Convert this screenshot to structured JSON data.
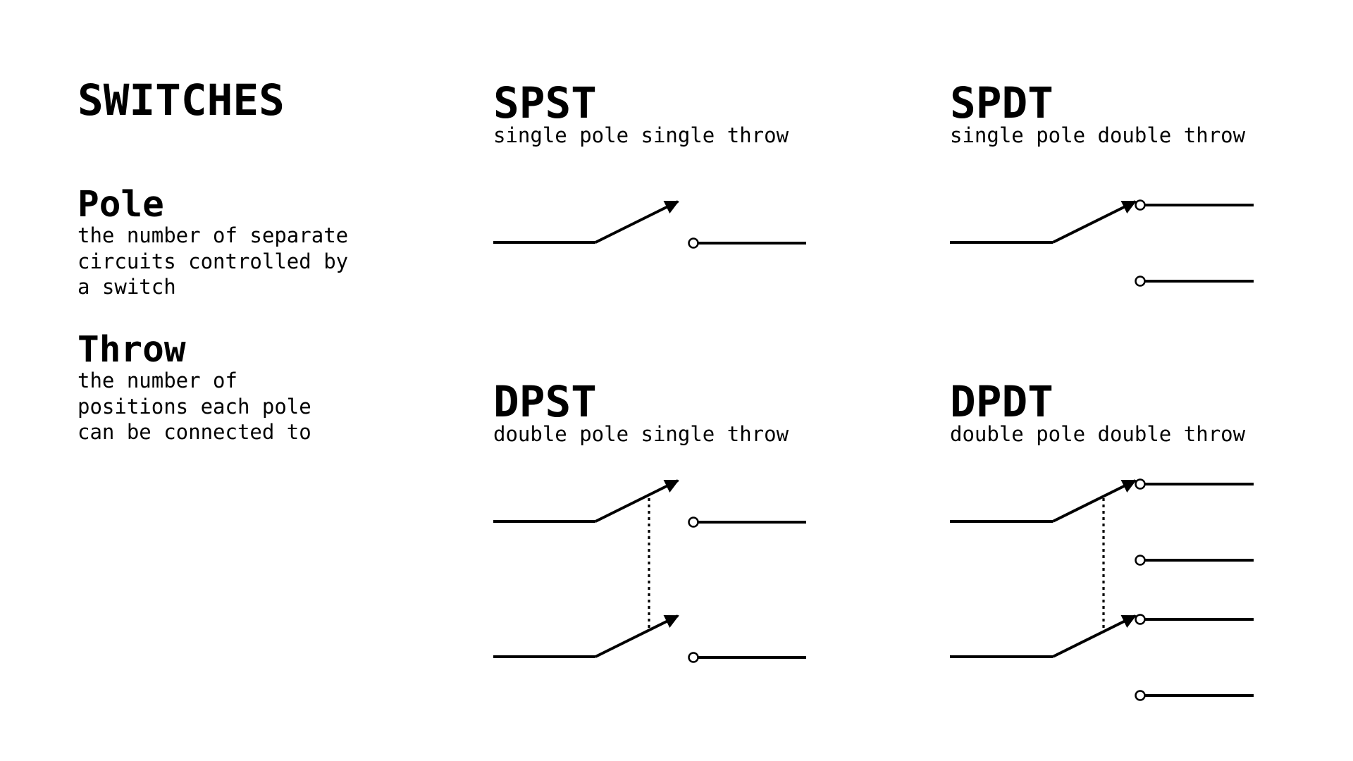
{
  "page": {
    "title": "SWITCHES"
  },
  "definitions": [
    {
      "term": "Pole",
      "description": "the number of separate\ncircuits controlled by\na switch"
    },
    {
      "term": "Throw",
      "description": "the number of\npositions each pole\ncan be connected to"
    }
  ],
  "switch_types": [
    {
      "code": "SPST",
      "name": "single pole single throw"
    },
    {
      "code": "SPDT",
      "name": "single pole double throw"
    },
    {
      "code": "DPST",
      "name": "double pole single throw"
    },
    {
      "code": "DPDT",
      "name": "double pole double throw"
    }
  ],
  "colors": {
    "ink": "#000000",
    "background": "#ffffff"
  }
}
